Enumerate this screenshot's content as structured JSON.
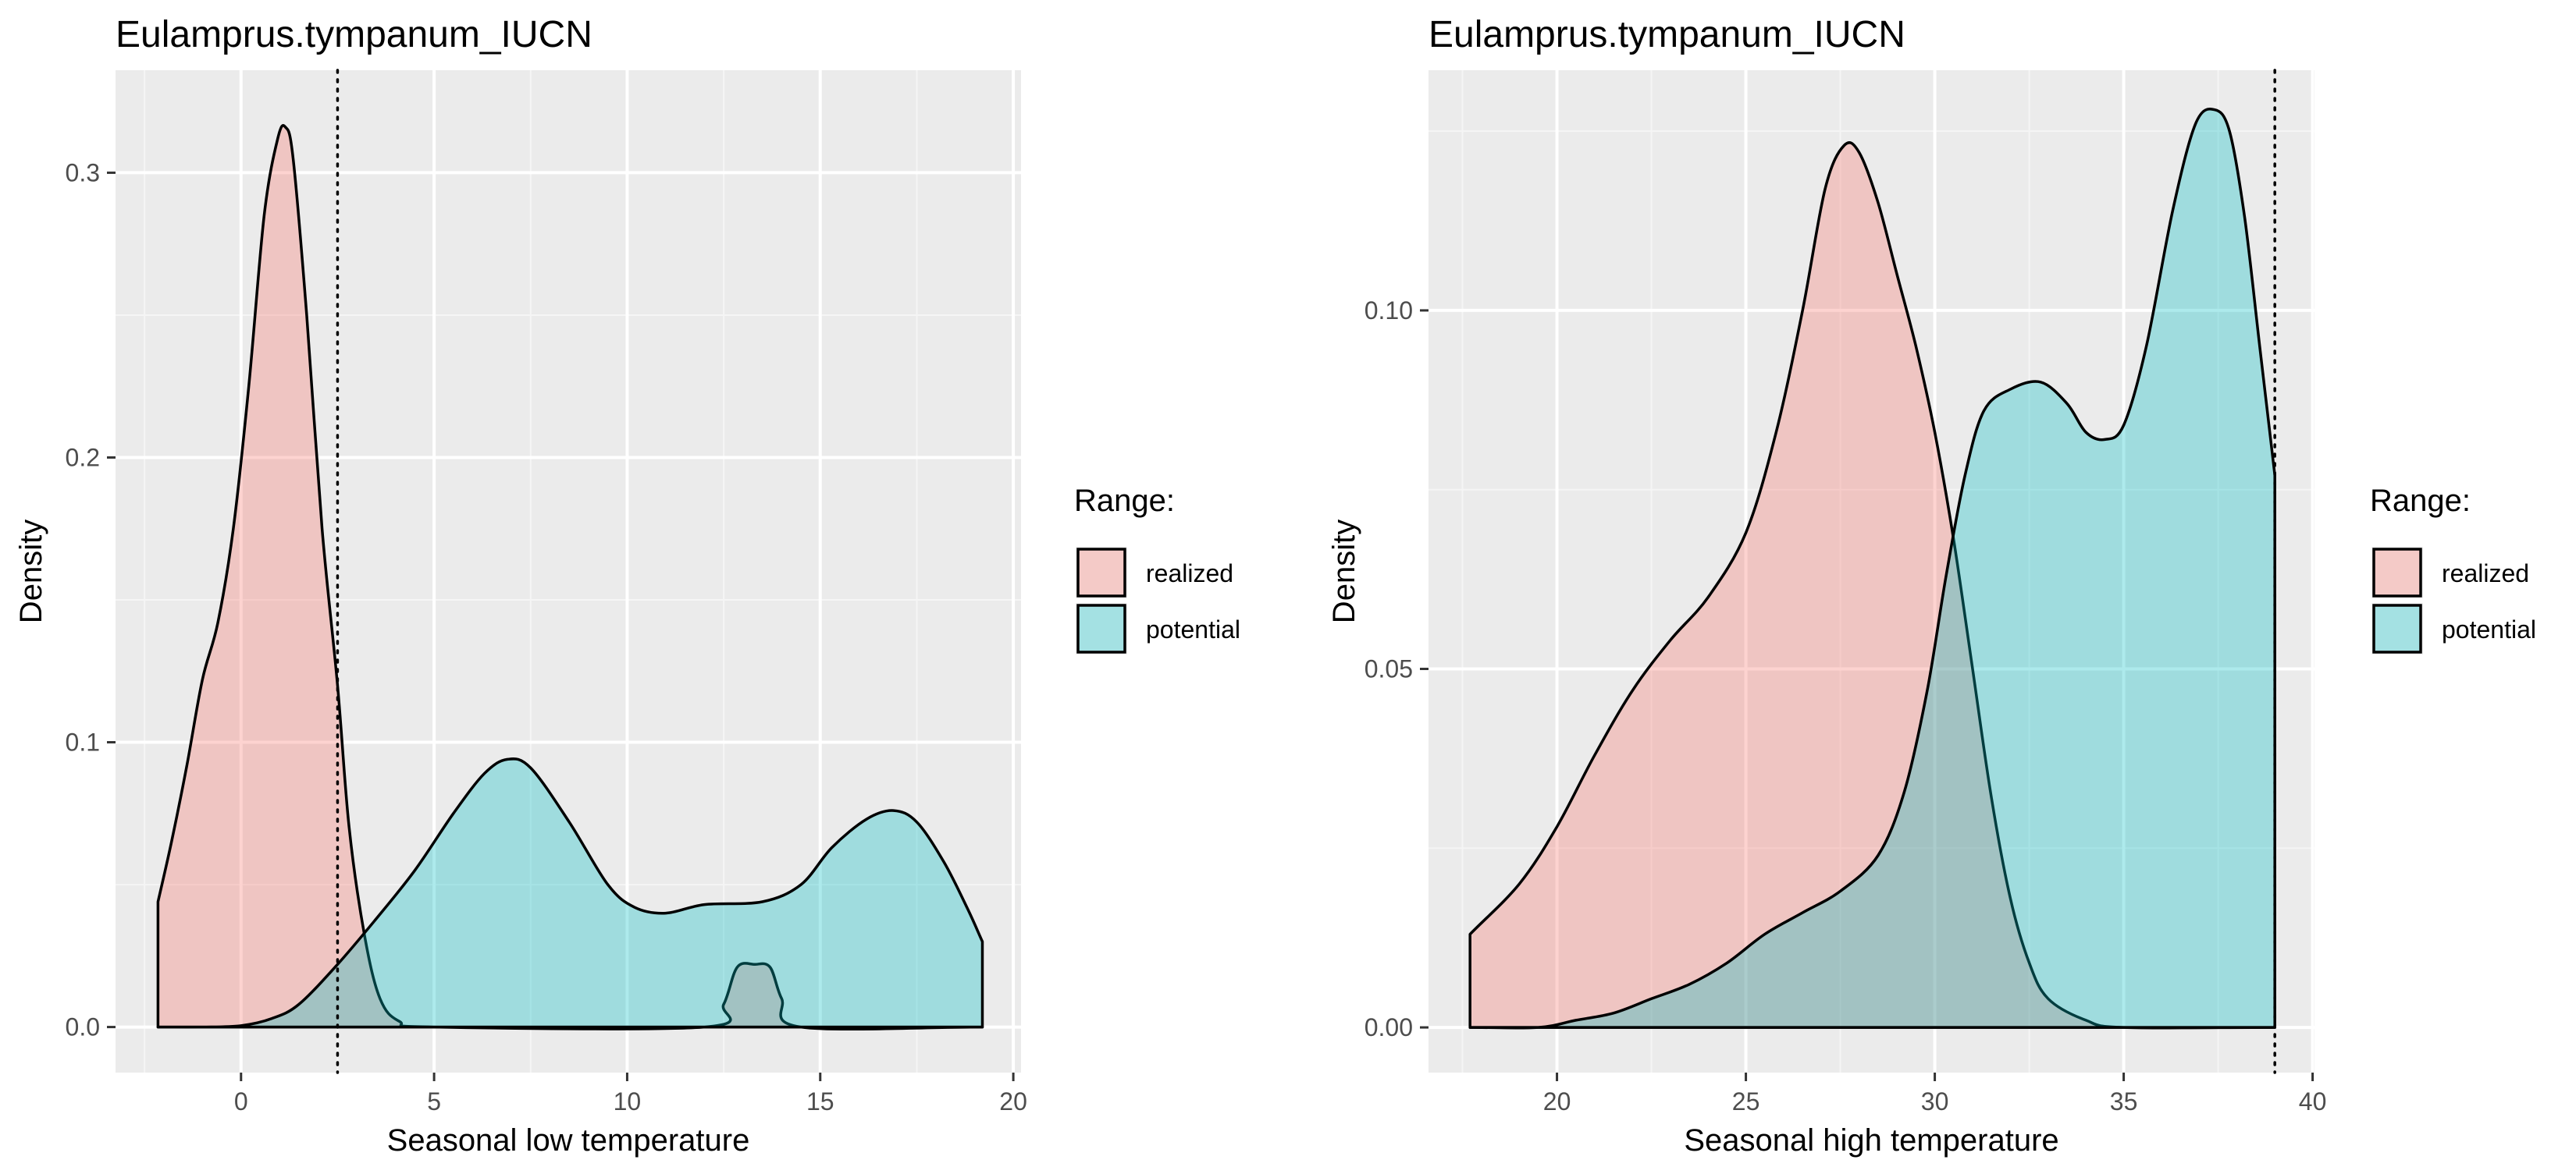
{
  "chart_data": [
    {
      "type": "area",
      "title": "Eulamprus.tympanum_IUCN",
      "xlabel": "Seasonal low temperature",
      "ylabel": "Density",
      "xlim": [
        -3.25,
        20.2
      ],
      "ylim": [
        -0.016,
        0.336
      ],
      "x_ticks": [
        0,
        5,
        10,
        15,
        20
      ],
      "y_ticks": [
        0.0,
        0.1,
        0.2,
        0.3
      ],
      "y_tick_labels": [
        "0.0",
        "0.1",
        "0.2",
        "0.3"
      ],
      "grid": true,
      "reference_line_x": 2.5,
      "legend": {
        "title": "Range:",
        "placement": "right",
        "entries": [
          "realized",
          "potential"
        ]
      },
      "series": [
        {
          "name": "realized",
          "color": "#F8766D",
          "points": [
            [
              -2.15,
              0
            ],
            [
              -2.15,
              0.044
            ],
            [
              -1.8,
              0.065
            ],
            [
              -1.4,
              0.092
            ],
            [
              -1.0,
              0.122
            ],
            [
              -0.6,
              0.142
            ],
            [
              -0.2,
              0.175
            ],
            [
              0.2,
              0.225
            ],
            [
              0.6,
              0.285
            ],
            [
              0.95,
              0.312
            ],
            [
              1.15,
              0.316
            ],
            [
              1.35,
              0.305
            ],
            [
              1.7,
              0.25
            ],
            [
              2.1,
              0.175
            ],
            [
              2.5,
              0.12
            ],
            [
              2.8,
              0.07
            ],
            [
              3.2,
              0.032
            ],
            [
              3.6,
              0.01
            ],
            [
              4.1,
              0.002
            ],
            [
              5.0,
              0
            ],
            [
              12.0,
              0
            ],
            [
              12.5,
              0.008
            ],
            [
              12.85,
              0.021
            ],
            [
              13.3,
              0.022
            ],
            [
              13.7,
              0.021
            ],
            [
              14.0,
              0.01
            ],
            [
              14.5,
              0
            ],
            [
              19.2,
              0
            ]
          ]
        },
        {
          "name": "potential",
          "color": "#00BFC4",
          "points": [
            [
              -2.15,
              0
            ],
            [
              -1.0,
              0
            ],
            [
              0,
              0.0005
            ],
            [
              0.8,
              0.003
            ],
            [
              1.5,
              0.008
            ],
            [
              2.5,
              0.022
            ],
            [
              3.5,
              0.038
            ],
            [
              4.5,
              0.055
            ],
            [
              5.5,
              0.075
            ],
            [
              6.3,
              0.089
            ],
            [
              6.9,
              0.094
            ],
            [
              7.5,
              0.091
            ],
            [
              8.5,
              0.072
            ],
            [
              9.5,
              0.05
            ],
            [
              10.2,
              0.042
            ],
            [
              11.0,
              0.04
            ],
            [
              12.0,
              0.043
            ],
            [
              13.5,
              0.044
            ],
            [
              14.5,
              0.05
            ],
            [
              15.3,
              0.063
            ],
            [
              16.2,
              0.073
            ],
            [
              16.9,
              0.076
            ],
            [
              17.5,
              0.072
            ],
            [
              18.2,
              0.058
            ],
            [
              18.8,
              0.042
            ],
            [
              19.2,
              0.03
            ],
            [
              19.2,
              0
            ]
          ]
        }
      ]
    },
    {
      "type": "area",
      "title": "Eulamprus.tympanum_IUCN",
      "xlabel": "Seasonal high temperature",
      "ylabel": "Density",
      "xlim": [
        16.6,
        40.05
      ],
      "ylim": [
        -0.0063,
        0.1335
      ],
      "x_ticks": [
        20,
        25,
        30,
        35,
        40
      ],
      "y_ticks": [
        0.0,
        0.05,
        0.1
      ],
      "y_tick_labels": [
        "0.00",
        "0.05",
        "0.10"
      ],
      "grid": true,
      "reference_line_x": 39.0,
      "legend": {
        "title": "Range:",
        "placement": "right",
        "entries": [
          "realized",
          "potential"
        ]
      },
      "series": [
        {
          "name": "realized",
          "color": "#F8766D",
          "points": [
            [
              17.7,
              0
            ],
            [
              17.7,
              0.013
            ],
            [
              19.0,
              0.02
            ],
            [
              20.0,
              0.028
            ],
            [
              21.0,
              0.038
            ],
            [
              22.0,
              0.047
            ],
            [
              23.0,
              0.054
            ],
            [
              24.0,
              0.06
            ],
            [
              25.0,
              0.069
            ],
            [
              25.8,
              0.083
            ],
            [
              26.5,
              0.1
            ],
            [
              27.1,
              0.117
            ],
            [
              27.6,
              0.123
            ],
            [
              28.0,
              0.122
            ],
            [
              28.5,
              0.115
            ],
            [
              29.0,
              0.105
            ],
            [
              29.5,
              0.095
            ],
            [
              30.0,
              0.083
            ],
            [
              30.5,
              0.068
            ],
            [
              31.0,
              0.05
            ],
            [
              31.5,
              0.032
            ],
            [
              32.0,
              0.018
            ],
            [
              32.5,
              0.009
            ],
            [
              33.0,
              0.004
            ],
            [
              34.0,
              0.001
            ],
            [
              35.0,
              0
            ],
            [
              39.0,
              0
            ]
          ]
        },
        {
          "name": "potential",
          "color": "#00BFC4",
          "points": [
            [
              17.7,
              0
            ],
            [
              19.5,
              0
            ],
            [
              20.5,
              0.001
            ],
            [
              21.5,
              0.002
            ],
            [
              22.5,
              0.004
            ],
            [
              23.5,
              0.006
            ],
            [
              24.5,
              0.009
            ],
            [
              25.5,
              0.013
            ],
            [
              26.5,
              0.016
            ],
            [
              27.5,
              0.019
            ],
            [
              28.5,
              0.024
            ],
            [
              29.2,
              0.033
            ],
            [
              29.8,
              0.047
            ],
            [
              30.3,
              0.063
            ],
            [
              30.8,
              0.077
            ],
            [
              31.3,
              0.086
            ],
            [
              32.0,
              0.089
            ],
            [
              32.8,
              0.09
            ],
            [
              33.5,
              0.087
            ],
            [
              34.0,
              0.083
            ],
            [
              34.5,
              0.082
            ],
            [
              35.0,
              0.084
            ],
            [
              35.6,
              0.095
            ],
            [
              36.3,
              0.114
            ],
            [
              36.9,
              0.126
            ],
            [
              37.4,
              0.128
            ],
            [
              37.8,
              0.125
            ],
            [
              38.2,
              0.113
            ],
            [
              38.6,
              0.095
            ],
            [
              39.0,
              0.077
            ],
            [
              39.0,
              0
            ]
          ]
        }
      ]
    }
  ]
}
